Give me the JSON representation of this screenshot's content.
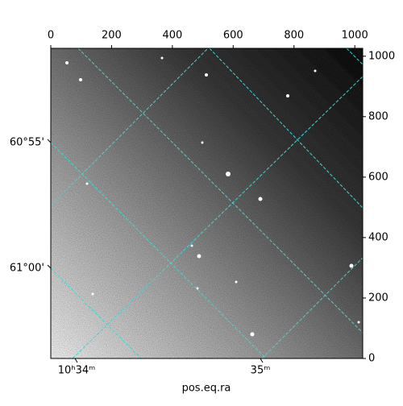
{
  "chart_data": {
    "type": "image",
    "xlabel": "pos.eq.ra",
    "xlim": [
      0,
      1026
    ],
    "xticks": [
      0,
      200,
      400,
      600,
      800,
      1000
    ],
    "ylim": [
      0,
      1026
    ],
    "yticks": [
      0,
      200,
      400,
      600,
      800,
      1000
    ],
    "ra_tick_labels": [
      "10ʰ34ᵐ",
      "35ᵐ"
    ],
    "dec_tick_labels": [
      "60°55'",
      "61°00'"
    ],
    "grid_color": "#3fd6d6"
  }
}
